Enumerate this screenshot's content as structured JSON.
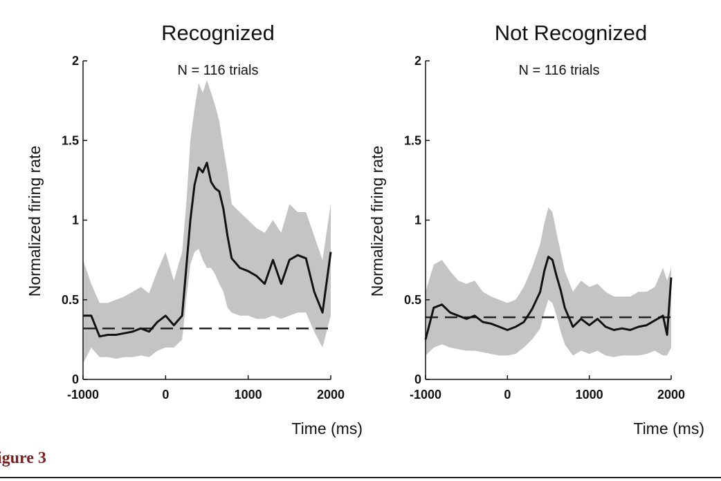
{
  "caption": "igure 3",
  "colors": {
    "band": "#c4c4c4",
    "line": "#111111",
    "caption": "#7a1f1f"
  },
  "chart_data": [
    {
      "type": "line",
      "title": "Recognized",
      "subtitle": "N = 116 trials",
      "xlabel": "Time (ms)",
      "ylabel": "Normalized firing rate",
      "xlim": [
        -1000,
        2000
      ],
      "ylim": [
        0,
        2
      ],
      "xticks": [
        "-1000",
        "0",
        "1000",
        "2000"
      ],
      "yticks": [
        "0",
        "0.5",
        "1",
        "1.5",
        "2"
      ],
      "grid": false,
      "baseline": 0.32,
      "series": [
        {
          "style": "mean-with-shaded-error",
          "x": [
            -1000,
            -900,
            -800,
            -700,
            -600,
            -500,
            -400,
            -300,
            -200,
            -100,
            0,
            100,
            200,
            250,
            300,
            350,
            400,
            450,
            500,
            550,
            600,
            650,
            700,
            750,
            800,
            900,
            1000,
            1100,
            1200,
            1300,
            1400,
            1500,
            1600,
            1700,
            1800,
            1900,
            2000
          ],
          "mean": [
            0.4,
            0.4,
            0.27,
            0.28,
            0.28,
            0.29,
            0.3,
            0.32,
            0.3,
            0.36,
            0.4,
            0.34,
            0.4,
            0.7,
            1.0,
            1.22,
            1.33,
            1.3,
            1.36,
            1.24,
            1.2,
            1.18,
            1.07,
            0.9,
            0.76,
            0.7,
            0.68,
            0.65,
            0.6,
            0.75,
            0.6,
            0.75,
            0.78,
            0.76,
            0.55,
            0.42,
            0.8
          ],
          "upper": [
            0.75,
            0.6,
            0.48,
            0.48,
            0.5,
            0.52,
            0.55,
            0.58,
            0.54,
            0.68,
            0.8,
            0.62,
            0.8,
            1.1,
            1.5,
            1.7,
            1.86,
            1.8,
            1.88,
            1.8,
            1.72,
            1.62,
            1.45,
            1.3,
            1.1,
            1.05,
            1.0,
            0.95,
            0.92,
            1.0,
            0.92,
            1.1,
            1.05,
            1.05,
            0.9,
            0.75,
            1.1
          ],
          "lower": [
            0.1,
            0.2,
            0.14,
            0.14,
            0.13,
            0.14,
            0.14,
            0.15,
            0.14,
            0.18,
            0.2,
            0.2,
            0.25,
            0.5,
            0.72,
            0.8,
            0.82,
            0.75,
            0.7,
            0.7,
            0.66,
            0.6,
            0.55,
            0.45,
            0.42,
            0.4,
            0.4,
            0.38,
            0.38,
            0.4,
            0.38,
            0.4,
            0.42,
            0.42,
            0.3,
            0.2,
            0.4
          ]
        }
      ]
    },
    {
      "type": "line",
      "title": "Not Recognized",
      "subtitle": "N = 116 trials",
      "xlabel": "Time (ms)",
      "ylabel": "Normalized firing rate",
      "xlim": [
        -1000,
        2000
      ],
      "ylim": [
        0,
        2
      ],
      "xticks": [
        "-1000",
        "0",
        "1000",
        "2000"
      ],
      "yticks": [
        "0",
        "0.5",
        "1",
        "1.5",
        "2"
      ],
      "grid": false,
      "baseline": 0.39,
      "series": [
        {
          "style": "mean-with-shaded-error",
          "x": [
            -1000,
            -900,
            -800,
            -700,
            -600,
            -500,
            -400,
            -300,
            -200,
            -100,
            0,
            100,
            200,
            300,
            400,
            450,
            500,
            550,
            600,
            650,
            700,
            800,
            900,
            1000,
            1100,
            1200,
            1300,
            1400,
            1500,
            1600,
            1700,
            1800,
            1900,
            1950,
            2000
          ],
          "mean": [
            0.25,
            0.45,
            0.47,
            0.42,
            0.4,
            0.38,
            0.4,
            0.36,
            0.35,
            0.33,
            0.31,
            0.33,
            0.36,
            0.44,
            0.55,
            0.68,
            0.77,
            0.75,
            0.65,
            0.56,
            0.45,
            0.33,
            0.38,
            0.34,
            0.38,
            0.33,
            0.31,
            0.32,
            0.31,
            0.33,
            0.34,
            0.37,
            0.4,
            0.28,
            0.64
          ],
          "upper": [
            0.55,
            0.72,
            0.75,
            0.68,
            0.62,
            0.6,
            0.62,
            0.55,
            0.52,
            0.5,
            0.48,
            0.5,
            0.58,
            0.7,
            0.85,
            0.98,
            1.08,
            1.05,
            0.92,
            0.8,
            0.68,
            0.55,
            0.62,
            0.58,
            0.6,
            0.55,
            0.52,
            0.52,
            0.52,
            0.55,
            0.55,
            0.58,
            0.7,
            0.62,
            0.7
          ],
          "lower": [
            0.15,
            0.2,
            0.22,
            0.2,
            0.19,
            0.18,
            0.18,
            0.17,
            0.16,
            0.15,
            0.15,
            0.16,
            0.2,
            0.25,
            0.32,
            0.42,
            0.5,
            0.48,
            0.4,
            0.3,
            0.22,
            0.15,
            0.18,
            0.16,
            0.18,
            0.15,
            0.14,
            0.15,
            0.15,
            0.15,
            0.16,
            0.18,
            0.15,
            0.15,
            0.2
          ]
        }
      ]
    }
  ]
}
